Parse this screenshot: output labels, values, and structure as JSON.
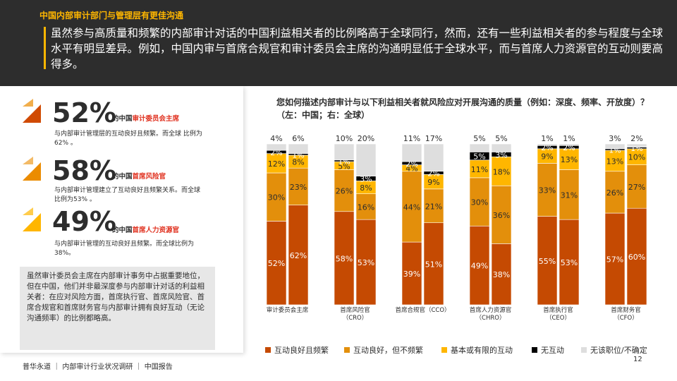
{
  "header": {
    "kicker": "中国内部审计部门与管理层有更佳沟通",
    "lede": "虽然参与高质量和频繁的内部审计对话的中国利益相关者的比例略高于全球同行，然而，还有一些利益相关者的参与程度与全球水平有明显差异。例如，中国内审与首席合规官和审计委员会主席的沟通明显低于全球水平，而与首席人力资源官的互动则要高得多。"
  },
  "stats": [
    {
      "pct": "52%",
      "prefix": "的中国",
      "role": "审计委员会主席",
      "desc": "与内部审计管理层的互动良好且频繁。而全球 比例为62% 。"
    },
    {
      "pct": "58%",
      "prefix": "的中国",
      "role": "首席风险官",
      "desc": "与内部审计管理建立了互动良好且频繁关系。而全球比例为53% 。"
    },
    {
      "pct": "49%",
      "prefix": "的中国",
      "role": "首席人力资源官",
      "desc": "与内部审计管理的互动良好且频繁。而全球比例为38%。"
    }
  ],
  "note": "虽然审计委员会主席在内部审计事务中占据重要地位，但在中国，他们并非最深度参与内部审计对话的利益相关者：在应对风险方面，首席执行官、首席风险官、首席合规官和首席财务官与内部审计拥有良好互动（无论沟通频率）的比例都略高。",
  "colors": {
    "accent": "#ffb600",
    "header_bg": "#2d2d2d",
    "stat_pct": "#e0301e",
    "icon_dark": "#d04a02",
    "icon_light": "#eb8c00"
  },
  "chart_data": {
    "type": "bar",
    "stacked": true,
    "title": "您如何描述内部审计与以下利益相关者就风险应对开展沟通的质量（例如：深度、频率、开放度）？ （左：中国；右：全球）",
    "categories": [
      "审计委员会主席",
      "首席风险官\n（CRO）",
      "首席合规官（CCO）",
      "首席人力资源官\n（CHRO）",
      "首席执行官\n（CEO）",
      "首席财务官\n（CFO）"
    ],
    "bars": [
      "中国",
      "全球"
    ],
    "series": [
      {
        "name": "互动良好且频繁",
        "color": "#c54a02",
        "label_color": "#ffffff",
        "values": [
          [
            52,
            62
          ],
          [
            58,
            53
          ],
          [
            39,
            51
          ],
          [
            49,
            38
          ],
          [
            55,
            53
          ],
          [
            57,
            60
          ]
        ]
      },
      {
        "name": "互动良好，但不频繁",
        "color": "#e38f0b",
        "label_color": "#2d2d2d",
        "values": [
          [
            30,
            23
          ],
          [
            26,
            16
          ],
          [
            44,
            21
          ],
          [
            30,
            36
          ],
          [
            33,
            31
          ],
          [
            26,
            27
          ]
        ]
      },
      {
        "name": "基本或有限的互动",
        "color": "#ffb600",
        "label_color": "#2d2d2d",
        "values": [
          [
            12,
            8
          ],
          [
            5,
            8
          ],
          [
            4,
            9
          ],
          [
            11,
            18
          ],
          [
            9,
            13
          ],
          [
            13,
            10
          ]
        ]
      },
      {
        "name": "无互动",
        "color": "#000000",
        "label_color": "#ffffff",
        "values": [
          [
            2,
            1
          ],
          [
            1,
            3
          ],
          [
            2,
            2
          ],
          [
            5,
            3
          ],
          [
            2,
            2
          ],
          [
            1,
            1
          ]
        ]
      },
      {
        "name": "无该职位/不确定",
        "color": "#dedede",
        "label_color": "#2d2d2d",
        "values": [
          [
            4,
            6
          ],
          [
            10,
            20
          ],
          [
            11,
            17
          ],
          [
            5,
            5
          ],
          [
            1,
            1
          ],
          [
            3,
            2
          ]
        ]
      }
    ],
    "ylim": [
      0,
      100
    ],
    "grid": false,
    "legend": "bottom"
  },
  "footer": {
    "text": "普华永道 ｜ 内部审计行业状况调研 ｜ 中国报告",
    "page": "12"
  }
}
